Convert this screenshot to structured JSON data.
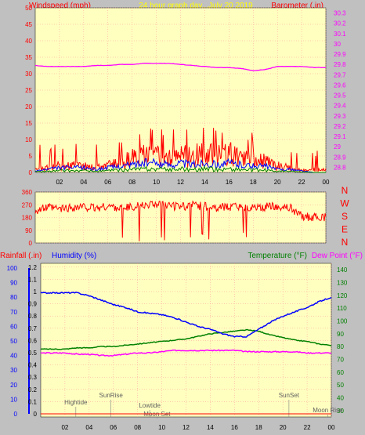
{
  "colors": {
    "background": "#c0c0c0",
    "plot_bg": "#ffffc0",
    "grid": "#ff9999",
    "wind": "#ff0000",
    "gust_blue": "#0000ff",
    "gust_green": "#008000",
    "barometer": "#ff00ff",
    "direction": "#ff0000",
    "rainfall": "#ff0000",
    "humidity": "#0000ff",
    "temperature": "#008000",
    "dewpoint": "#ff00ff",
    "header_text": "#ff0000",
    "title_text": "#ffff00"
  },
  "chart_data": [
    {
      "type": "line",
      "title": "24 hour graph day...July 20 2019",
      "ylabel": "Windspeed (mph)",
      "y2label": "Barometer (.in)",
      "x_ticks": [
        "02",
        "04",
        "06",
        "08",
        "10",
        "12",
        "14",
        "16",
        "18",
        "20",
        "22",
        "00"
      ],
      "y_ticks": [
        "0",
        "5",
        "10",
        "15",
        "20",
        "25",
        "30",
        "35",
        "40",
        "45",
        "50"
      ],
      "y2_ticks": [
        "28.8",
        "28.9",
        "29",
        "29.1",
        "29.2",
        "29.3",
        "29.4",
        "29.5",
        "29.6",
        "29.7",
        "29.8",
        "29.9",
        "30",
        "30.1",
        "30.2",
        "30.3"
      ],
      "ylim": [
        0,
        50
      ],
      "y2lim": [
        28.75,
        30.35
      ],
      "grid": true,
      "series": [
        {
          "name": "Barometer",
          "axis": "right",
          "x": [
            0,
            1,
            2,
            3,
            4,
            5,
            6,
            7,
            8,
            9,
            10,
            11,
            12,
            13,
            14,
            15,
            16,
            17,
            18,
            19,
            20,
            21,
            22,
            23,
            24
          ],
          "values": [
            29.79,
            29.78,
            29.78,
            29.78,
            29.78,
            29.79,
            29.79,
            29.8,
            29.8,
            29.81,
            29.81,
            29.81,
            29.8,
            29.79,
            29.78,
            29.77,
            29.77,
            29.76,
            29.74,
            29.75,
            29.78,
            29.78,
            29.78,
            29.77,
            29.77
          ]
        },
        {
          "name": "Windspeed",
          "axis": "left",
          "x": [
            0,
            1,
            2,
            3,
            4,
            5,
            6,
            7,
            8,
            9,
            10,
            11,
            12,
            13,
            14,
            15,
            16,
            17,
            18,
            19,
            20,
            21,
            22,
            23,
            24
          ],
          "values": [
            1,
            2,
            3,
            3,
            3,
            2,
            3,
            4,
            6,
            8,
            7,
            6,
            8,
            7,
            8,
            7,
            8,
            6,
            5,
            5,
            3,
            2,
            1,
            1,
            1
          ]
        },
        {
          "name": "Average wind",
          "axis": "left",
          "x": [
            0,
            1,
            2,
            3,
            4,
            5,
            6,
            7,
            8,
            9,
            10,
            11,
            12,
            13,
            14,
            15,
            16,
            17,
            18,
            19,
            20,
            21,
            22,
            23,
            24
          ],
          "values": [
            0.5,
            1,
            1.5,
            1.5,
            1.5,
            1,
            1.5,
            2,
            2.5,
            3,
            3,
            2.5,
            3,
            2.5,
            3,
            2.5,
            3,
            2.5,
            2,
            2,
            1,
            1,
            0.5,
            0,
            0
          ]
        }
      ]
    },
    {
      "type": "line",
      "y_ticks": [
        "0",
        "90",
        "180",
        "270",
        "360"
      ],
      "ylim": [
        0,
        360
      ],
      "right_labels": [
        "N",
        "W",
        "S",
        "E",
        "N"
      ],
      "series": [
        {
          "name": "Wind direction",
          "x": [
            0,
            1,
            2,
            3,
            4,
            5,
            6,
            7,
            8,
            9,
            10,
            11,
            12,
            13,
            14,
            15,
            16,
            17,
            18,
            19,
            20,
            21,
            22,
            23,
            24
          ],
          "values": [
            230,
            250,
            240,
            250,
            255,
            245,
            260,
            250,
            255,
            265,
            270,
            260,
            255,
            265,
            260,
            250,
            255,
            250,
            260,
            255,
            260,
            250,
            190,
            180,
            180
          ]
        }
      ]
    },
    {
      "type": "line",
      "y_label_rain": "Rainfall (.in)",
      "y_label_humidity": "Humidity (%)",
      "y_label_temp": "Temperature (°F)",
      "y_label_dew": "Dew Point (°F)",
      "x_ticks": [
        "02",
        "04",
        "06",
        "08",
        "10",
        "12",
        "14",
        "16",
        "18",
        "20",
        "22",
        "00"
      ],
      "humidity_ticks": [
        "0",
        "10",
        "20",
        "30",
        "40",
        "50",
        "60",
        "70",
        "80",
        "90",
        "100"
      ],
      "rain_ticks": [
        "0",
        "0.1",
        "0.2",
        "0.3",
        "0.4",
        "0.5",
        "0.6",
        "0.7",
        "0.8",
        "0.9",
        "1",
        "1.1",
        "1.2"
      ],
      "temp_ticks": [
        "30",
        "40",
        "50",
        "60",
        "70",
        "80",
        "90",
        "100",
        "110",
        "120",
        "130",
        "140"
      ],
      "humidity_lim": [
        0,
        100
      ],
      "temp_lim": [
        25,
        145
      ],
      "grid": true,
      "series": [
        {
          "name": "Humidity",
          "axis": "humidity",
          "x": [
            0,
            1,
            2,
            3,
            4,
            5,
            6,
            7,
            8,
            9,
            10,
            11,
            12,
            13,
            14,
            15,
            16,
            17,
            18,
            19,
            20,
            21,
            22,
            23,
            24
          ],
          "values": [
            83,
            83,
            83,
            83,
            81,
            78,
            75,
            73,
            70,
            69,
            68,
            66,
            63,
            60,
            58,
            55,
            53,
            53,
            58,
            63,
            67,
            70,
            73,
            77,
            80
          ]
        },
        {
          "name": "Temperature",
          "axis": "temp",
          "x": [
            0,
            1,
            2,
            3,
            4,
            5,
            6,
            7,
            8,
            9,
            10,
            11,
            12,
            13,
            14,
            15,
            16,
            17,
            18,
            19,
            20,
            21,
            22,
            23,
            24
          ],
          "values": [
            78,
            78,
            78,
            79,
            79,
            80,
            80,
            81,
            82,
            83,
            84,
            85,
            86,
            88,
            90,
            91,
            92,
            93,
            92,
            89,
            87,
            85,
            84,
            82,
            81
          ]
        },
        {
          "name": "Dew Point",
          "axis": "temp",
          "x": [
            0,
            1,
            2,
            3,
            4,
            5,
            6,
            7,
            8,
            9,
            10,
            11,
            12,
            13,
            14,
            15,
            16,
            17,
            18,
            19,
            20,
            21,
            22,
            23,
            24
          ],
          "values": [
            75,
            75,
            75,
            74,
            74,
            73,
            73,
            74,
            75,
            75,
            76,
            77,
            77,
            77,
            77,
            77,
            77,
            76,
            76,
            76,
            76,
            76,
            75,
            75,
            75
          ]
        },
        {
          "name": "Rainfall",
          "axis": "rain",
          "x": [
            0,
            24
          ],
          "values": [
            0,
            0
          ]
        }
      ],
      "annotations": [
        {
          "label": "Hightide",
          "x": 2.9
        },
        {
          "label": "SunRise",
          "x": 5.8
        },
        {
          "label": "Lowtide",
          "x": 9.0
        },
        {
          "label": "Moon Set",
          "x": 9.6
        },
        {
          "label": "SunSet",
          "x": 20.5
        },
        {
          "label": "Moon Rise",
          "x": 23.7
        }
      ]
    }
  ]
}
